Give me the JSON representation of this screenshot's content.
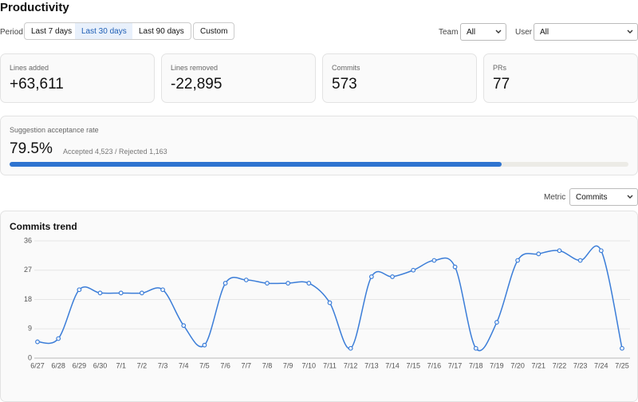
{
  "header": {
    "title": "Productivity"
  },
  "filters": {
    "period_label": "Period",
    "periods": [
      "Last 7 days",
      "Last 30 days",
      "Last 90 days",
      "Custom"
    ],
    "team_label": "Team",
    "team": "All",
    "user_label": "User",
    "user": "All"
  },
  "stats": [
    {
      "label": "Lines added",
      "value": "+63,611"
    },
    {
      "label": "Lines removed",
      "value": "-22,895"
    },
    {
      "label": "Commits",
      "value": "573"
    },
    {
      "label": "PRs",
      "value": "77"
    }
  ],
  "acceptance": {
    "label": "Suggestion acceptance rate",
    "rate": {
      "value": 79.5,
      "label": "79.5%"
    },
    "detail": "Accepted 4,523 / Rejected 1,163"
  },
  "metric": {
    "label": "Metric",
    "value": "Commits"
  },
  "chart_data": {
    "type": "line",
    "title": "Commits trend",
    "categories": [
      "6/27",
      "6/28",
      "6/29",
      "6/30",
      "7/1",
      "7/2",
      "7/3",
      "7/4",
      "7/5",
      "7/6",
      "7/7",
      "7/8",
      "7/9",
      "7/10",
      "7/11",
      "7/12",
      "7/13",
      "7/14",
      "7/15",
      "7/16",
      "7/17",
      "7/18",
      "7/19",
      "7/20",
      "7/21",
      "7/22",
      "7/23",
      "7/24",
      "7/25"
    ],
    "values": [
      5,
      6,
      21,
      20,
      20,
      20,
      21,
      10,
      4,
      23,
      24,
      23,
      23,
      23,
      17,
      3,
      25,
      25,
      27,
      30,
      28,
      3,
      11,
      30,
      32,
      33,
      30,
      33,
      3
    ],
    "color": "#3b7dd8",
    "ylim": [
      0,
      36
    ],
    "yticks": [
      0,
      9,
      18,
      27,
      36
    ],
    "grid": true
  }
}
